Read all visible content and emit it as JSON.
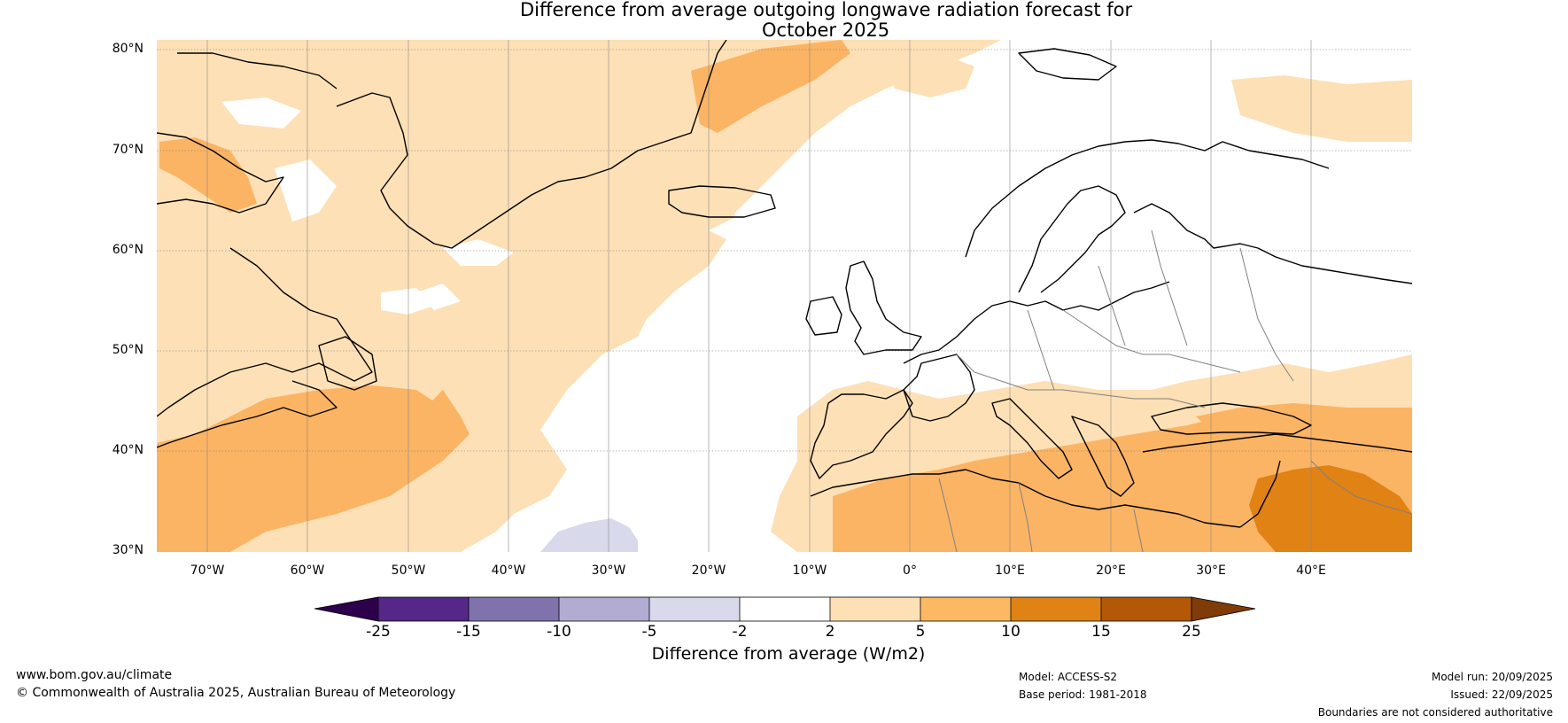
{
  "title": {
    "line1": "Difference from average outgoing longwave radiation forecast for",
    "line2": "October 2025"
  },
  "map": {
    "lat_labels": [
      "80°N",
      "70°N",
      "60°N",
      "50°N",
      "40°N",
      "30°N"
    ],
    "lon_labels": [
      "70°W",
      "60°W",
      "50°W",
      "40°W",
      "30°W",
      "20°W",
      "10°W",
      "0°",
      "10°E",
      "20°E",
      "30°E",
      "40°E"
    ],
    "colors": {
      "ocean_white": "#ffffff",
      "light_orange": "#fde0b6",
      "mid_orange": "#fbb464",
      "dark_orange": "#e08214",
      "light_purple": "#d8daeb",
      "coast": "#000000",
      "border": "#808080"
    }
  },
  "colorbar": {
    "ticks": [
      "-25",
      "-15",
      "-10",
      "-5",
      "-2",
      "2",
      "5",
      "10",
      "15",
      "25"
    ],
    "colors": [
      "#2d004b",
      "#542788",
      "#8073ac",
      "#b2abd2",
      "#d8daeb",
      "#ffffff",
      "#fee0b6",
      "#fdb863",
      "#e08214",
      "#b35806",
      "#7f3b08"
    ],
    "label": "Difference from average (W/m2)"
  },
  "footer": {
    "url": "www.bom.gov.au/climate",
    "copyright": "© Commonwealth of Australia 2025, Australian Bureau of Meteorology",
    "model": "Model: ACCESS-S2",
    "base_period": "Base period: 1981-2018",
    "model_run": "Model run: 20/09/2025",
    "issued": "Issued: 22/09/2025",
    "disclaimer": "Boundaries are not considered authoritative"
  }
}
